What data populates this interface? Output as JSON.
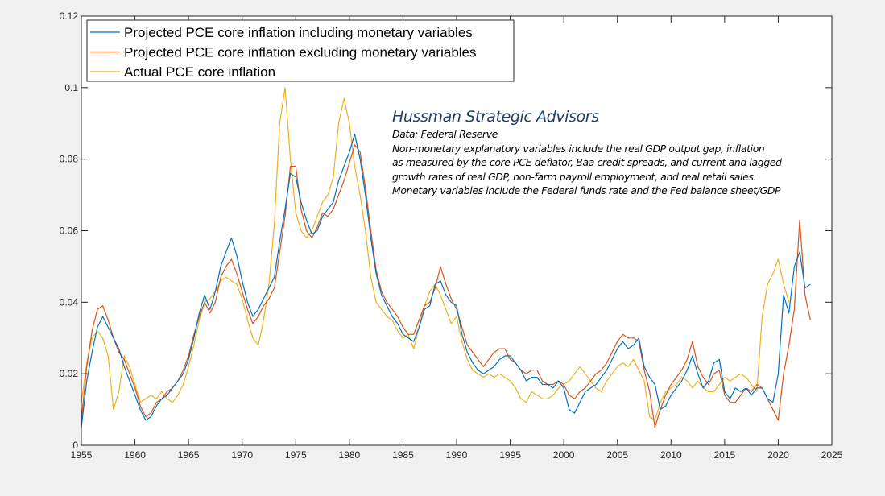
{
  "chart_data": {
    "type": "line",
    "title": "",
    "xlabel": "",
    "ylabel": "",
    "xlim": [
      1955,
      2025
    ],
    "ylim": [
      0,
      0.12
    ],
    "xticks": [
      1955,
      1960,
      1965,
      1970,
      1975,
      1980,
      1985,
      1990,
      1995,
      2000,
      2005,
      2010,
      2015,
      2020,
      2025
    ],
    "xtick_labels": [
      "1955",
      "1960",
      "1965",
      "1970",
      "1975",
      "1980",
      "1985",
      "1990",
      "1995",
      "2000",
      "2005",
      "2010",
      "2015",
      "2020",
      "2025"
    ],
    "yticks": [
      0,
      0.02,
      0.04,
      0.06,
      0.08,
      0.1,
      0.12
    ],
    "ytick_labels": [
      "0",
      "0.02",
      "0.04",
      "0.06",
      "0.08",
      "0.1",
      "0.12"
    ],
    "grid": false,
    "legend_position": "top-left",
    "x": [
      1955.0,
      1955.5,
      1956.0,
      1956.5,
      1957.0,
      1957.5,
      1958.0,
      1958.5,
      1959.0,
      1959.5,
      1960.0,
      1960.5,
      1961.0,
      1961.5,
      1962.0,
      1962.5,
      1963.0,
      1963.5,
      1964.0,
      1964.5,
      1965.0,
      1965.5,
      1966.0,
      1966.5,
      1967.0,
      1967.5,
      1968.0,
      1968.5,
      1969.0,
      1969.5,
      1970.0,
      1970.5,
      1971.0,
      1971.5,
      1972.0,
      1972.5,
      1973.0,
      1973.5,
      1974.0,
      1974.5,
      1975.0,
      1975.5,
      1976.0,
      1976.5,
      1977.0,
      1977.5,
      1978.0,
      1978.5,
      1979.0,
      1979.5,
      1980.0,
      1980.5,
      1981.0,
      1981.5,
      1982.0,
      1982.5,
      1983.0,
      1983.5,
      1984.0,
      1984.5,
      1985.0,
      1985.5,
      1986.0,
      1986.5,
      1987.0,
      1987.5,
      1988.0,
      1988.5,
      1989.0,
      1989.5,
      1990.0,
      1990.5,
      1991.0,
      1991.5,
      1992.0,
      1992.5,
      1993.0,
      1993.5,
      1994.0,
      1994.5,
      1995.0,
      1995.5,
      1996.0,
      1996.5,
      1997.0,
      1997.5,
      1998.0,
      1998.5,
      1999.0,
      1999.5,
      2000.0,
      2000.5,
      2001.0,
      2001.5,
      2002.0,
      2002.5,
      2003.0,
      2003.5,
      2004.0,
      2004.5,
      2005.0,
      2005.5,
      2006.0,
      2006.5,
      2007.0,
      2007.5,
      2008.0,
      2008.5,
      2009.0,
      2009.5,
      2010.0,
      2010.5,
      2011.0,
      2011.5,
      2012.0,
      2012.5,
      2013.0,
      2013.5,
      2014.0,
      2014.5,
      2015.0,
      2015.5,
      2016.0,
      2016.5,
      2017.0,
      2017.5,
      2018.0,
      2018.5,
      2019.0,
      2019.5,
      2020.0,
      2020.5,
      2021.0,
      2021.5,
      2022.0,
      2022.5,
      2023.0
    ],
    "series": [
      {
        "name": "Projected PCE core inflation including monetary variables",
        "color": "#0072bd",
        "values": [
          0.005,
          0.018,
          0.026,
          0.033,
          0.036,
          0.033,
          0.03,
          0.027,
          0.022,
          0.018,
          0.014,
          0.01,
          0.007,
          0.008,
          0.011,
          0.013,
          0.014,
          0.016,
          0.018,
          0.02,
          0.024,
          0.03,
          0.037,
          0.042,
          0.038,
          0.043,
          0.05,
          0.054,
          0.058,
          0.053,
          0.046,
          0.04,
          0.036,
          0.038,
          0.041,
          0.044,
          0.047,
          0.057,
          0.066,
          0.076,
          0.075,
          0.068,
          0.063,
          0.059,
          0.06,
          0.064,
          0.066,
          0.068,
          0.074,
          0.078,
          0.082,
          0.087,
          0.08,
          0.07,
          0.058,
          0.048,
          0.042,
          0.039,
          0.036,
          0.034,
          0.031,
          0.03,
          0.029,
          0.033,
          0.038,
          0.039,
          0.045,
          0.046,
          0.042,
          0.04,
          0.039,
          0.031,
          0.026,
          0.023,
          0.021,
          0.02,
          0.021,
          0.022,
          0.024,
          0.025,
          0.025,
          0.023,
          0.021,
          0.018,
          0.019,
          0.019,
          0.017,
          0.017,
          0.016,
          0.018,
          0.016,
          0.01,
          0.009,
          0.012,
          0.015,
          0.016,
          0.017,
          0.019,
          0.021,
          0.024,
          0.027,
          0.029,
          0.027,
          0.028,
          0.03,
          0.022,
          0.019,
          0.017,
          0.01,
          0.011,
          0.014,
          0.016,
          0.018,
          0.021,
          0.025,
          0.02,
          0.016,
          0.018,
          0.023,
          0.024,
          0.015,
          0.013,
          0.016,
          0.015,
          0.016,
          0.014,
          0.016,
          0.016,
          0.013,
          0.012,
          0.02,
          0.042,
          0.037,
          0.05,
          0.054,
          0.044,
          0.045
        ]
      },
      {
        "name": "Projected PCE core inflation excluding monetary variables",
        "color": "#d95319",
        "values": [
          0.007,
          0.022,
          0.032,
          0.038,
          0.039,
          0.035,
          0.03,
          0.026,
          0.024,
          0.02,
          0.016,
          0.011,
          0.008,
          0.009,
          0.012,
          0.013,
          0.015,
          0.016,
          0.018,
          0.021,
          0.025,
          0.031,
          0.036,
          0.04,
          0.037,
          0.04,
          0.047,
          0.05,
          0.052,
          0.048,
          0.043,
          0.038,
          0.034,
          0.036,
          0.039,
          0.041,
          0.044,
          0.054,
          0.064,
          0.078,
          0.078,
          0.066,
          0.06,
          0.058,
          0.061,
          0.065,
          0.064,
          0.066,
          0.07,
          0.074,
          0.079,
          0.084,
          0.082,
          0.072,
          0.06,
          0.049,
          0.043,
          0.04,
          0.038,
          0.036,
          0.033,
          0.031,
          0.031,
          0.035,
          0.039,
          0.04,
          0.044,
          0.05,
          0.045,
          0.041,
          0.038,
          0.033,
          0.028,
          0.026,
          0.024,
          0.022,
          0.024,
          0.026,
          0.027,
          0.027,
          0.024,
          0.023,
          0.021,
          0.02,
          0.021,
          0.021,
          0.018,
          0.017,
          0.017,
          0.018,
          0.017,
          0.014,
          0.013,
          0.015,
          0.016,
          0.018,
          0.02,
          0.021,
          0.023,
          0.026,
          0.029,
          0.031,
          0.03,
          0.03,
          0.029,
          0.021,
          0.015,
          0.005,
          0.01,
          0.014,
          0.017,
          0.019,
          0.021,
          0.024,
          0.029,
          0.022,
          0.019,
          0.017,
          0.02,
          0.021,
          0.014,
          0.012,
          0.012,
          0.014,
          0.016,
          0.015,
          0.017,
          0.016,
          0.013,
          0.01,
          0.007,
          0.02,
          0.028,
          0.038,
          0.063,
          0.042,
          0.035
        ]
      },
      {
        "name": "Actual PCE core inflation",
        "color": "#edb120",
        "values": [
          0.012,
          0.023,
          0.03,
          0.032,
          0.03,
          0.025,
          0.01,
          0.015,
          0.025,
          0.022,
          0.017,
          0.012,
          0.013,
          0.014,
          0.013,
          0.015,
          0.013,
          0.012,
          0.014,
          0.017,
          0.022,
          0.028,
          0.035,
          0.04,
          0.041,
          0.043,
          0.046,
          0.047,
          0.046,
          0.045,
          0.041,
          0.035,
          0.03,
          0.028,
          0.035,
          0.045,
          0.062,
          0.09,
          0.1,
          0.08,
          0.065,
          0.06,
          0.058,
          0.06,
          0.064,
          0.068,
          0.07,
          0.075,
          0.09,
          0.097,
          0.09,
          0.078,
          0.07,
          0.06,
          0.047,
          0.04,
          0.038,
          0.036,
          0.035,
          0.032,
          0.03,
          0.031,
          0.027,
          0.033,
          0.039,
          0.043,
          0.045,
          0.042,
          0.038,
          0.034,
          0.036,
          0.029,
          0.024,
          0.021,
          0.02,
          0.019,
          0.02,
          0.019,
          0.02,
          0.019,
          0.018,
          0.016,
          0.013,
          0.012,
          0.015,
          0.014,
          0.013,
          0.013,
          0.014,
          0.016,
          0.017,
          0.018,
          0.02,
          0.022,
          0.02,
          0.018,
          0.016,
          0.015,
          0.018,
          0.02,
          0.022,
          0.023,
          0.022,
          0.024,
          0.021,
          0.018,
          0.008,
          0.007,
          0.012,
          0.015,
          0.016,
          0.017,
          0.019,
          0.018,
          0.016,
          0.018,
          0.016,
          0.015,
          0.015,
          0.017,
          0.019,
          0.018,
          0.019,
          0.02,
          0.019,
          0.017,
          0.015,
          0.036,
          0.045,
          0.048,
          0.052,
          0.045,
          0.04
        ]
      }
    ],
    "legend": [
      "Projected PCE core inflation including monetary variables",
      "Projected PCE core inflation excluding monetary variables",
      "Actual PCE core inflation"
    ],
    "annotations": {
      "title": "Hussman Strategic Advisors",
      "lines": [
        "Data: Federal Reserve",
        "Non-monetary explanatory variables include the real GDP output gap, inflation",
        "as measured by the core PCE deflator, Baa credit spreads, and current and lagged",
        "growth rates of real GDP, non-farm payroll employment, and real retail sales.",
        "Monetary variables include the Federal funds rate and the Fed balance sheet/GDP"
      ]
    }
  }
}
